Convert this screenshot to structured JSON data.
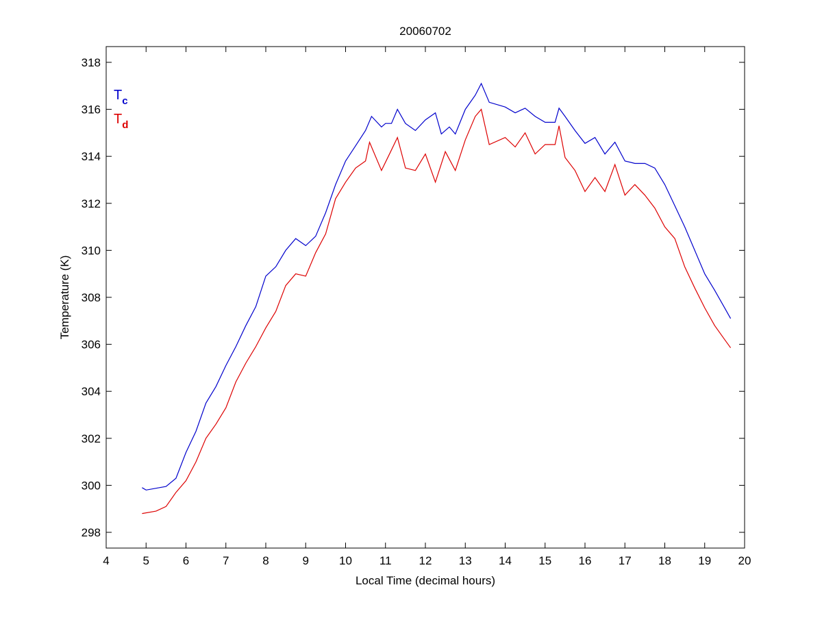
{
  "chart_data": {
    "type": "line",
    "title": "20060702",
    "xlabel": "Local Time (decimal hours)",
    "ylabel": "Temperature (K)",
    "xlim": [
      4,
      20
    ],
    "ylim": [
      297.33,
      318.67
    ],
    "xticks": [
      4,
      5,
      6,
      7,
      8,
      9,
      10,
      11,
      12,
      13,
      14,
      15,
      16,
      17,
      18,
      19,
      20
    ],
    "yticks": [
      298,
      300,
      302,
      304,
      306,
      308,
      310,
      312,
      314,
      316,
      318
    ],
    "grid": false,
    "legend": {
      "placement": "top-left",
      "entries": [
        {
          "main": "T",
          "sub": "c",
          "color": "#0000cc"
        },
        {
          "main": "T",
          "sub": "d",
          "color": "#dd0000"
        }
      ]
    },
    "series": [
      {
        "name": "Tc",
        "color": "#0000cc",
        "x": [
          4.9,
          5.0,
          5.5,
          5.75,
          6.0,
          6.25,
          6.5,
          6.75,
          7.0,
          7.25,
          7.5,
          7.75,
          8.0,
          8.25,
          8.5,
          8.75,
          9.0,
          9.25,
          9.5,
          9.75,
          10.0,
          10.25,
          10.5,
          10.65,
          10.9,
          11.0,
          11.15,
          11.3,
          11.5,
          11.75,
          12.0,
          12.25,
          12.4,
          12.6,
          12.75,
          13.0,
          13.25,
          13.4,
          13.6,
          14.0,
          14.25,
          14.5,
          14.75,
          15.0,
          15.25,
          15.35,
          15.5,
          15.75,
          16.0,
          16.25,
          16.5,
          16.75,
          17.0,
          17.25,
          17.5,
          17.75,
          18.0,
          18.25,
          18.5,
          18.75,
          19.0,
          19.25,
          19.5,
          19.65
        ],
        "y": [
          299.9,
          299.8,
          299.95,
          300.3,
          301.4,
          302.3,
          303.5,
          304.2,
          305.1,
          305.9,
          306.8,
          307.6,
          308.9,
          309.3,
          310.0,
          310.5,
          310.2,
          310.6,
          311.6,
          312.8,
          313.8,
          314.45,
          315.1,
          315.7,
          315.25,
          315.4,
          315.4,
          316.0,
          315.4,
          315.1,
          315.55,
          315.85,
          314.95,
          315.25,
          314.95,
          316.0,
          316.6,
          317.1,
          316.3,
          316.1,
          315.85,
          316.05,
          315.7,
          315.45,
          315.45,
          316.05,
          315.7,
          315.1,
          314.55,
          314.8,
          314.1,
          314.6,
          313.8,
          313.7,
          313.7,
          313.5,
          312.8,
          311.9,
          311.0,
          310.0,
          309.0,
          308.3,
          307.55,
          307.1
        ]
      },
      {
        "name": "Td",
        "color": "#dd0000",
        "x": [
          4.9,
          5.25,
          5.5,
          5.75,
          6.0,
          6.25,
          6.5,
          6.75,
          7.0,
          7.25,
          7.5,
          7.75,
          8.0,
          8.25,
          8.5,
          8.75,
          9.0,
          9.25,
          9.5,
          9.75,
          10.0,
          10.25,
          10.5,
          10.6,
          10.9,
          11.1,
          11.3,
          11.5,
          11.75,
          12.0,
          12.25,
          12.5,
          12.75,
          13.0,
          13.25,
          13.4,
          13.6,
          14.0,
          14.25,
          14.5,
          14.75,
          15.0,
          15.25,
          15.35,
          15.5,
          15.75,
          16.0,
          16.25,
          16.5,
          16.75,
          17.0,
          17.25,
          17.5,
          17.75,
          18.0,
          18.25,
          18.5,
          18.75,
          19.0,
          19.25,
          19.5,
          19.65
        ],
        "y": [
          298.8,
          298.9,
          299.1,
          299.7,
          300.2,
          301.0,
          302.0,
          302.6,
          303.3,
          304.4,
          305.2,
          305.9,
          306.7,
          307.4,
          308.5,
          309.0,
          308.9,
          309.9,
          310.7,
          312.2,
          312.9,
          313.5,
          313.8,
          314.6,
          313.4,
          314.1,
          314.8,
          313.5,
          313.4,
          314.1,
          312.9,
          314.2,
          313.4,
          314.7,
          315.7,
          316.0,
          314.5,
          314.8,
          314.4,
          315.0,
          314.1,
          314.5,
          314.5,
          315.3,
          313.95,
          313.4,
          312.5,
          313.1,
          312.5,
          313.65,
          312.35,
          312.8,
          312.35,
          311.8,
          311.0,
          310.5,
          309.3,
          308.4,
          307.55,
          306.8,
          306.2,
          305.85
        ]
      }
    ]
  }
}
